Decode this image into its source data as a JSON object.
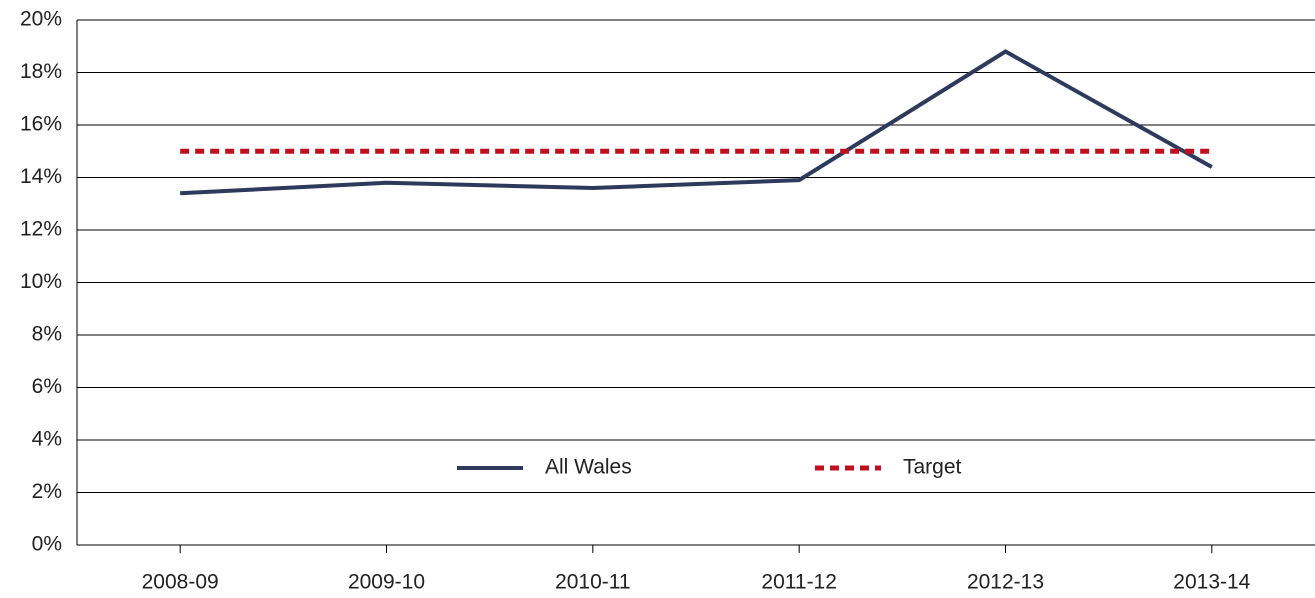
{
  "chart_data": {
    "type": "line",
    "categories": [
      "2008-09",
      "2009-10",
      "2010-11",
      "2011-12",
      "2012-13",
      "2013-14"
    ],
    "series": [
      {
        "name": "All Wales",
        "color": "#2e3a5c",
        "dash": false,
        "values": [
          13.4,
          13.8,
          13.6,
          13.9,
          18.8,
          14.4
        ]
      },
      {
        "name": "Target",
        "color": "#c0101e",
        "dash": true,
        "values": [
          15,
          15,
          15,
          15,
          15,
          15
        ]
      }
    ],
    "ylim": [
      0,
      20
    ],
    "yticks": [
      {
        "value": 0,
        "label": "0%"
      },
      {
        "value": 2,
        "label": "2%"
      },
      {
        "value": 4,
        "label": "4%"
      },
      {
        "value": 6,
        "label": "6%"
      },
      {
        "value": 8,
        "label": "8%"
      },
      {
        "value": 10,
        "label": "10%"
      },
      {
        "value": 12,
        "label": "12%"
      },
      {
        "value": 14,
        "label": "14%"
      },
      {
        "value": 16,
        "label": "16%"
      },
      {
        "value": 18,
        "label": "18%"
      },
      {
        "value": 20,
        "label": "20%"
      }
    ],
    "grid": true
  }
}
